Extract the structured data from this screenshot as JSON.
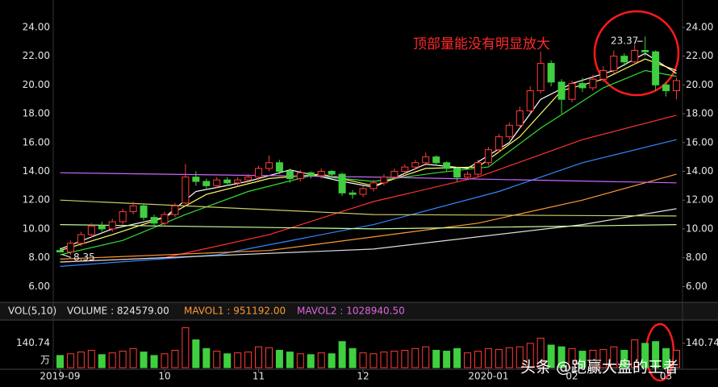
{
  "chart_data": {
    "type": "candlestick",
    "annotation": "顶部量能没有明显放大",
    "watermark": "头条 @跑赢大盘的王者",
    "ylim": [
      4.9,
      25.9
    ],
    "yticks": [
      {
        "value": 6,
        "label": "6.00"
      },
      {
        "value": 8,
        "label": "8.00"
      },
      {
        "value": 10,
        "label": "10.00"
      },
      {
        "value": 12,
        "label": "12.00"
      },
      {
        "value": 14,
        "label": "14.00"
      },
      {
        "value": 16,
        "label": "16.00"
      },
      {
        "value": 18,
        "label": "18.00"
      },
      {
        "value": 20,
        "label": "20.00"
      },
      {
        "value": 22,
        "label": "22.00"
      },
      {
        "value": 24,
        "label": "24.00"
      }
    ],
    "xticks": [
      {
        "value": 0,
        "label": "2019-09"
      },
      {
        "value": 10,
        "label": "10"
      },
      {
        "value": 19,
        "label": "11"
      },
      {
        "value": 29,
        "label": "12"
      },
      {
        "value": 41,
        "label": "2020-01"
      },
      {
        "value": 49,
        "label": "02"
      },
      {
        "value": 58,
        "label": "03"
      }
    ],
    "up_color": "#ff3b3b",
    "down_color": "#3fcf3f",
    "candles": [
      [
        8.5,
        8.7,
        8.35,
        8.4
      ],
      [
        8.4,
        9.2,
        8.2,
        9.0
      ],
      [
        9.0,
        9.8,
        8.8,
        9.6
      ],
      [
        9.6,
        10.4,
        9.4,
        10.2
      ],
      [
        10.2,
        10.5,
        9.8,
        10.0
      ],
      [
        10.0,
        10.7,
        9.8,
        10.5
      ],
      [
        10.5,
        11.4,
        10.3,
        11.2
      ],
      [
        11.2,
        11.9,
        11.0,
        11.6
      ],
      [
        11.6,
        11.7,
        10.6,
        10.8
      ],
      [
        10.8,
        11.0,
        10.2,
        10.4
      ],
      [
        10.4,
        11.2,
        10.2,
        11.0
      ],
      [
        11.0,
        11.8,
        10.8,
        11.6
      ],
      [
        11.8,
        14.5,
        11.7,
        13.6
      ],
      [
        13.6,
        14.0,
        13.0,
        13.3
      ],
      [
        13.3,
        13.5,
        12.7,
        13.0
      ],
      [
        13.0,
        13.6,
        12.8,
        13.4
      ],
      [
        13.4,
        13.6,
        13.0,
        13.2
      ],
      [
        13.2,
        13.6,
        13.0,
        13.4
      ],
      [
        13.4,
        13.8,
        13.2,
        13.6
      ],
      [
        13.6,
        14.4,
        13.4,
        14.2
      ],
      [
        14.2,
        15.1,
        14.0,
        14.6
      ],
      [
        14.6,
        14.8,
        13.8,
        14.0
      ],
      [
        14.0,
        14.2,
        13.2,
        13.5
      ],
      [
        13.5,
        14.1,
        13.3,
        13.9
      ],
      [
        13.9,
        14.0,
        13.5,
        13.7
      ],
      [
        13.7,
        14.2,
        13.5,
        14.0
      ],
      [
        14.0,
        14.1,
        13.6,
        13.8
      ],
      [
        13.8,
        13.9,
        12.3,
        12.5
      ],
      [
        12.5,
        12.7,
        12.1,
        12.4
      ],
      [
        12.4,
        13.0,
        12.2,
        12.8
      ],
      [
        12.8,
        13.4,
        12.6,
        13.2
      ],
      [
        13.2,
        13.8,
        13.0,
        13.6
      ],
      [
        13.6,
        14.2,
        13.4,
        14.0
      ],
      [
        14.0,
        14.5,
        13.8,
        14.3
      ],
      [
        14.3,
        14.8,
        14.1,
        14.6
      ],
      [
        14.6,
        15.3,
        14.4,
        15.0
      ],
      [
        15.0,
        15.1,
        14.4,
        14.6
      ],
      [
        14.6,
        14.7,
        14.0,
        14.2
      ],
      [
        14.2,
        14.3,
        13.3,
        13.6
      ],
      [
        13.6,
        14.0,
        13.4,
        13.8
      ],
      [
        13.8,
        14.8,
        13.6,
        14.6
      ],
      [
        14.6,
        15.7,
        14.4,
        15.5
      ],
      [
        15.5,
        16.6,
        15.3,
        16.4
      ],
      [
        16.4,
        17.4,
        16.2,
        17.2
      ],
      [
        17.2,
        18.5,
        17.0,
        18.2
      ],
      [
        18.2,
        19.9,
        18.0,
        19.6
      ],
      [
        19.6,
        22.3,
        19.4,
        21.5
      ],
      [
        21.5,
        21.7,
        19.9,
        20.2
      ],
      [
        20.2,
        20.4,
        18.0,
        19.0
      ],
      [
        19.0,
        20.3,
        18.8,
        20.1
      ],
      [
        20.1,
        20.5,
        19.5,
        19.8
      ],
      [
        19.8,
        20.7,
        19.6,
        20.4
      ],
      [
        20.4,
        21.3,
        20.2,
        21.0
      ],
      [
        21.0,
        22.4,
        20.8,
        22.0
      ],
      [
        22.0,
        22.2,
        21.3,
        21.6
      ],
      [
        21.6,
        22.8,
        21.4,
        22.4
      ],
      [
        22.4,
        23.37,
        22.0,
        22.3
      ],
      [
        22.3,
        22.4,
        19.6,
        20.0
      ],
      [
        20.0,
        20.2,
        19.2,
        19.6
      ],
      [
        19.6,
        20.5,
        19.0,
        20.3
      ]
    ],
    "series": [
      {
        "color": "#ffffff",
        "x": [
          0,
          5,
          10,
          13,
          18,
          22,
          27,
          30,
          35,
          39,
          43,
          46,
          49,
          53,
          56,
          59
        ],
        "values": [
          8.6,
          10.0,
          10.8,
          12.6,
          13.3,
          14.1,
          13.3,
          12.9,
          14.5,
          14.2,
          16.0,
          19.0,
          20.1,
          21.0,
          22.2,
          20.8
        ]
      },
      {
        "color": "#ffff66",
        "x": [
          0,
          5,
          10,
          14,
          20,
          25,
          30,
          35,
          40,
          44,
          48,
          52,
          56,
          59
        ],
        "values": [
          8.5,
          9.6,
          10.8,
          12.4,
          13.5,
          13.8,
          13.0,
          14.2,
          14.3,
          16.4,
          19.6,
          20.4,
          21.8,
          21.0
        ]
      },
      {
        "color": "#33dd33",
        "x": [
          0,
          6,
          12,
          18,
          24,
          30,
          36,
          41,
          46,
          52,
          56,
          59
        ],
        "values": [
          8.2,
          9.2,
          11.0,
          12.6,
          13.7,
          13.3,
          13.9,
          14.3,
          17.0,
          19.8,
          21.0,
          20.6
        ]
      },
      {
        "color": "#ff3333",
        "x": [
          0,
          10,
          20,
          30,
          40,
          50,
          59
        ],
        "values": [
          7.7,
          8.0,
          9.6,
          11.9,
          13.6,
          16.2,
          17.9
        ]
      },
      {
        "color": "#3388ff",
        "x": [
          0,
          15,
          30,
          42,
          50,
          59
        ],
        "values": [
          7.4,
          8.2,
          10.3,
          12.6,
          14.6,
          16.2
        ]
      },
      {
        "color": "#ff9933",
        "x": [
          0,
          20,
          40,
          50,
          59
        ],
        "values": [
          7.9,
          8.5,
          10.4,
          12.0,
          13.8
        ]
      },
      {
        "color": "#dddddd",
        "x": [
          0,
          30,
          50,
          59
        ],
        "values": [
          7.7,
          8.6,
          10.3,
          11.4
        ]
      },
      {
        "color": "#cccc66",
        "x": [
          0,
          30,
          59
        ],
        "values": [
          12.0,
          11.0,
          10.9
        ]
      },
      {
        "color": "#ccff99",
        "x": [
          0,
          30,
          59
        ],
        "values": [
          10.3,
          10.0,
          10.3
        ]
      },
      {
        "color": "#cc66ff",
        "x": [
          0,
          30,
          59
        ],
        "values": [
          13.9,
          13.6,
          13.2
        ]
      }
    ],
    "volume": {
      "header": [
        "VOL(5,10)",
        "VOLUME : 824579.00",
        "MAVOL1 : 951192.00",
        "MAVOL2 : 1028940.50"
      ],
      "header_colors": [
        "#e6e6e6",
        "#e6e6e6",
        "#ff9933",
        "#dd66dd"
      ],
      "unit": "万",
      "ylim": [
        0,
        260
      ],
      "yticks": [
        140.74
      ],
      "values": [
        70,
        80,
        90,
        100,
        75,
        85,
        95,
        110,
        90,
        70,
        80,
        100,
        230,
        160,
        110,
        95,
        80,
        85,
        90,
        120,
        115,
        100,
        90,
        80,
        75,
        85,
        80,
        150,
        110,
        85,
        80,
        90,
        95,
        100,
        110,
        120,
        100,
        95,
        110,
        85,
        95,
        110,
        105,
        115,
        120,
        140,
        170,
        130,
        120,
        110,
        95,
        100,
        105,
        120,
        100,
        160,
        140,
        150,
        110,
        100
      ]
    }
  }
}
